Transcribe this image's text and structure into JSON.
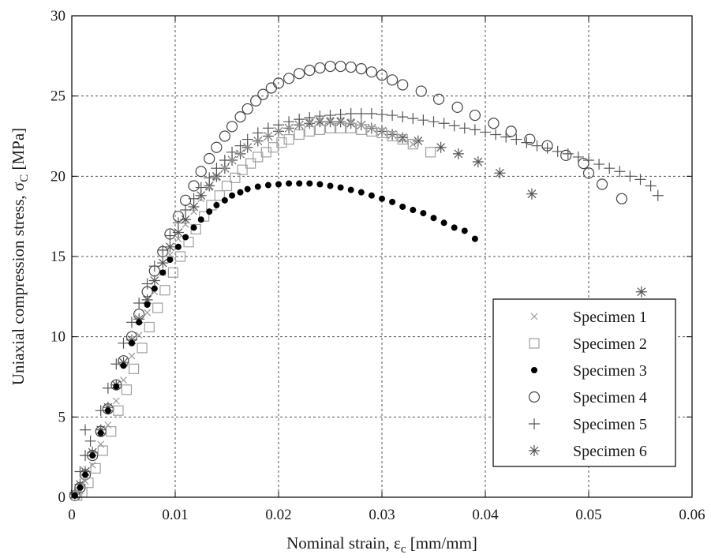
{
  "chart_data": {
    "type": "scatter",
    "title": "",
    "xlabel": "Nominal strain, ε",
    "xlabel_sub": "c",
    "xlabel_unit": " [mm/mm]",
    "ylabel": "Uniaxial compression stress,  σ",
    "ylabel_sub": "C",
    "ylabel_unit": " [MPa]",
    "xlim": [
      0,
      0.06
    ],
    "ylim": [
      0,
      30
    ],
    "x_ticks": [
      0,
      0.01,
      0.02,
      0.03,
      0.04,
      0.05,
      0.06
    ],
    "x_tick_labels": [
      "0",
      "0.01",
      "0.02",
      "0.03",
      "0.04",
      "0.05",
      "0.06"
    ],
    "y_ticks": [
      0,
      5,
      10,
      15,
      20,
      25,
      30
    ],
    "y_tick_labels": [
      "0",
      "5",
      "10",
      "15",
      "20",
      "25",
      "30"
    ],
    "grid": true,
    "legend_position": "bottom-right",
    "series": [
      {
        "name": "Specimen 1",
        "marker": "x",
        "color": "#9a9a9a",
        "points": [
          [
            0.0003,
            0.1
          ],
          [
            0.0008,
            0.4
          ],
          [
            0.0013,
            1.0
          ],
          [
            0.002,
            2.0
          ],
          [
            0.0028,
            3.3
          ],
          [
            0.0035,
            4.5
          ],
          [
            0.0043,
            6.0
          ],
          [
            0.005,
            7.3
          ],
          [
            0.0058,
            8.8
          ],
          [
            0.0065,
            10.1
          ],
          [
            0.0073,
            11.5
          ],
          [
            0.008,
            12.8
          ],
          [
            0.0088,
            14.0
          ],
          [
            0.0095,
            15.1
          ],
          [
            0.0103,
            16.1
          ],
          [
            0.011,
            17.0
          ],
          [
            0.0118,
            17.8
          ],
          [
            0.0125,
            18.6
          ],
          [
            0.0133,
            19.3
          ],
          [
            0.014,
            19.9
          ],
          [
            0.0148,
            20.5
          ],
          [
            0.0155,
            21.0
          ],
          [
            0.0163,
            21.4
          ],
          [
            0.017,
            21.8
          ],
          [
            0.018,
            22.2
          ],
          [
            0.019,
            22.5
          ],
          [
            0.02,
            22.8
          ],
          [
            0.021,
            23.0
          ],
          [
            0.022,
            23.2
          ],
          [
            0.023,
            23.4
          ],
          [
            0.024,
            23.5
          ],
          [
            0.025,
            23.5
          ],
          [
            0.026,
            23.5
          ],
          [
            0.027,
            23.4
          ],
          [
            0.028,
            23.2
          ],
          [
            0.029,
            23.0
          ],
          [
            0.03,
            22.8
          ],
          [
            0.031,
            22.6
          ],
          [
            0.032,
            22.3
          ],
          [
            0.033,
            22.0
          ]
        ]
      },
      {
        "name": "Specimen 2",
        "marker": "square",
        "color": "#a0a0a0",
        "points": [
          [
            0.0005,
            0.1
          ],
          [
            0.001,
            0.3
          ],
          [
            0.0016,
            0.9
          ],
          [
            0.0023,
            1.8
          ],
          [
            0.003,
            2.9
          ],
          [
            0.0038,
            4.1
          ],
          [
            0.0045,
            5.4
          ],
          [
            0.0053,
            6.7
          ],
          [
            0.006,
            8.0
          ],
          [
            0.0068,
            9.3
          ],
          [
            0.0075,
            10.6
          ],
          [
            0.0083,
            11.8
          ],
          [
            0.009,
            12.9
          ],
          [
            0.0098,
            14.0
          ],
          [
            0.0105,
            15.0
          ],
          [
            0.0113,
            15.9
          ],
          [
            0.012,
            16.7
          ],
          [
            0.0128,
            17.5
          ],
          [
            0.0135,
            18.2
          ],
          [
            0.0143,
            18.8
          ],
          [
            0.015,
            19.4
          ],
          [
            0.0158,
            19.9
          ],
          [
            0.0165,
            20.4
          ],
          [
            0.0173,
            20.8
          ],
          [
            0.018,
            21.2
          ],
          [
            0.0188,
            21.5
          ],
          [
            0.0195,
            21.8
          ],
          [
            0.0203,
            22.1
          ],
          [
            0.021,
            22.3
          ],
          [
            0.022,
            22.6
          ],
          [
            0.023,
            22.8
          ],
          [
            0.024,
            22.9
          ],
          [
            0.025,
            23.0
          ],
          [
            0.026,
            23.0
          ],
          [
            0.027,
            23.0
          ],
          [
            0.028,
            22.9
          ],
          [
            0.029,
            22.8
          ],
          [
            0.03,
            22.7
          ],
          [
            0.031,
            22.5
          ],
          [
            0.032,
            22.3
          ],
          [
            0.033,
            22.0
          ],
          [
            0.0347,
            21.5
          ]
        ]
      },
      {
        "name": "Specimen 3",
        "marker": "dot",
        "color": "#000000",
        "points": [
          [
            0.0003,
            0.1
          ],
          [
            0.0008,
            0.6
          ],
          [
            0.0013,
            1.4
          ],
          [
            0.002,
            2.6
          ],
          [
            0.0028,
            4.0
          ],
          [
            0.0035,
            5.4
          ],
          [
            0.0043,
            6.9
          ],
          [
            0.005,
            8.2
          ],
          [
            0.0058,
            9.6
          ],
          [
            0.0065,
            10.9
          ],
          [
            0.0073,
            12.0
          ],
          [
            0.008,
            13.0
          ],
          [
            0.0088,
            14.0
          ],
          [
            0.0095,
            14.8
          ],
          [
            0.0103,
            15.6
          ],
          [
            0.011,
            16.2
          ],
          [
            0.0118,
            16.8
          ],
          [
            0.0125,
            17.3
          ],
          [
            0.0133,
            17.8
          ],
          [
            0.014,
            18.2
          ],
          [
            0.0148,
            18.5
          ],
          [
            0.0155,
            18.8
          ],
          [
            0.0163,
            19.0
          ],
          [
            0.017,
            19.2
          ],
          [
            0.018,
            19.35
          ],
          [
            0.019,
            19.45
          ],
          [
            0.02,
            19.5
          ],
          [
            0.021,
            19.55
          ],
          [
            0.022,
            19.55
          ],
          [
            0.023,
            19.55
          ],
          [
            0.024,
            19.5
          ],
          [
            0.025,
            19.4
          ],
          [
            0.026,
            19.3
          ],
          [
            0.027,
            19.15
          ],
          [
            0.028,
            19.0
          ],
          [
            0.029,
            18.8
          ],
          [
            0.03,
            18.6
          ],
          [
            0.031,
            18.4
          ],
          [
            0.032,
            18.1
          ],
          [
            0.033,
            17.9
          ],
          [
            0.034,
            17.7
          ],
          [
            0.035,
            17.4
          ],
          [
            0.036,
            17.1
          ],
          [
            0.037,
            16.8
          ],
          [
            0.038,
            16.6
          ],
          [
            0.039,
            16.1
          ]
        ]
      },
      {
        "name": "Specimen 4",
        "marker": "circle",
        "color": "#444444",
        "points": [
          [
            0.0003,
            0.1
          ],
          [
            0.0008,
            0.6
          ],
          [
            0.0013,
            1.4
          ],
          [
            0.002,
            2.6
          ],
          [
            0.0028,
            4.1
          ],
          [
            0.0035,
            5.5
          ],
          [
            0.0043,
            7.0
          ],
          [
            0.005,
            8.5
          ],
          [
            0.0058,
            10.0
          ],
          [
            0.0065,
            11.4
          ],
          [
            0.0073,
            12.8
          ],
          [
            0.008,
            14.1
          ],
          [
            0.0088,
            15.3
          ],
          [
            0.0095,
            16.4
          ],
          [
            0.0103,
            17.5
          ],
          [
            0.011,
            18.5
          ],
          [
            0.0118,
            19.4
          ],
          [
            0.0125,
            20.3
          ],
          [
            0.0133,
            21.1
          ],
          [
            0.014,
            21.8
          ],
          [
            0.0148,
            22.5
          ],
          [
            0.0155,
            23.1
          ],
          [
            0.0163,
            23.7
          ],
          [
            0.017,
            24.2
          ],
          [
            0.0178,
            24.7
          ],
          [
            0.0185,
            25.1
          ],
          [
            0.0193,
            25.5
          ],
          [
            0.02,
            25.8
          ],
          [
            0.021,
            26.1
          ],
          [
            0.022,
            26.4
          ],
          [
            0.023,
            26.6
          ],
          [
            0.024,
            26.75
          ],
          [
            0.025,
            26.85
          ],
          [
            0.026,
            26.85
          ],
          [
            0.027,
            26.8
          ],
          [
            0.028,
            26.7
          ],
          [
            0.029,
            26.5
          ],
          [
            0.03,
            26.3
          ],
          [
            0.031,
            26.0
          ],
          [
            0.032,
            25.7
          ],
          [
            0.0338,
            25.3
          ],
          [
            0.0355,
            24.8
          ],
          [
            0.0373,
            24.3
          ],
          [
            0.039,
            23.8
          ],
          [
            0.0408,
            23.3
          ],
          [
            0.0425,
            22.8
          ],
          [
            0.0443,
            22.3
          ],
          [
            0.046,
            21.9
          ],
          [
            0.0478,
            21.3
          ],
          [
            0.0495,
            20.8
          ],
          [
            0.05,
            20.2
          ],
          [
            0.0513,
            19.5
          ],
          [
            0.0532,
            18.6
          ]
        ]
      },
      {
        "name": "Specimen 5",
        "marker": "plus",
        "color": "#555555",
        "points": [
          [
            0.0003,
            0.3
          ],
          [
            0.0008,
            1.6
          ],
          [
            0.0013,
            2.6
          ],
          [
            0.0018,
            3.5
          ],
          [
            0.0013,
            4.2
          ],
          [
            0.0028,
            5.4
          ],
          [
            0.0035,
            6.8
          ],
          [
            0.0043,
            8.3
          ],
          [
            0.005,
            9.6
          ],
          [
            0.0058,
            10.9
          ],
          [
            0.0065,
            12.1
          ],
          [
            0.0073,
            13.3
          ],
          [
            0.008,
            14.4
          ],
          [
            0.0088,
            15.4
          ],
          [
            0.0095,
            16.3
          ],
          [
            0.0103,
            17.1
          ],
          [
            0.011,
            17.9
          ],
          [
            0.0118,
            18.6
          ],
          [
            0.0125,
            19.3
          ],
          [
            0.0133,
            19.9
          ],
          [
            0.014,
            20.5
          ],
          [
            0.0148,
            21.0
          ],
          [
            0.0155,
            21.5
          ],
          [
            0.0163,
            21.9
          ],
          [
            0.017,
            22.3
          ],
          [
            0.018,
            22.7
          ],
          [
            0.019,
            23.0
          ],
          [
            0.02,
            23.2
          ],
          [
            0.021,
            23.4
          ],
          [
            0.022,
            23.55
          ],
          [
            0.023,
            23.65
          ],
          [
            0.024,
            23.75
          ],
          [
            0.025,
            23.8
          ],
          [
            0.026,
            23.85
          ],
          [
            0.027,
            23.9
          ],
          [
            0.028,
            23.9
          ],
          [
            0.029,
            23.9
          ],
          [
            0.03,
            23.85
          ],
          [
            0.031,
            23.8
          ],
          [
            0.032,
            23.7
          ],
          [
            0.033,
            23.6
          ],
          [
            0.034,
            23.5
          ],
          [
            0.035,
            23.4
          ],
          [
            0.036,
            23.3
          ],
          [
            0.037,
            23.15
          ],
          [
            0.038,
            23.0
          ],
          [
            0.039,
            22.9
          ],
          [
            0.04,
            22.75
          ],
          [
            0.041,
            22.6
          ],
          [
            0.042,
            22.45
          ],
          [
            0.043,
            22.3
          ],
          [
            0.044,
            22.1
          ],
          [
            0.045,
            21.9
          ],
          [
            0.046,
            21.75
          ],
          [
            0.047,
            21.55
          ],
          [
            0.048,
            21.4
          ],
          [
            0.049,
            21.2
          ],
          [
            0.05,
            21.0
          ],
          [
            0.051,
            20.75
          ],
          [
            0.052,
            20.5
          ],
          [
            0.053,
            20.3
          ],
          [
            0.054,
            20.0
          ],
          [
            0.055,
            19.8
          ],
          [
            0.056,
            19.4
          ],
          [
            0.0567,
            18.8
          ]
        ]
      },
      {
        "name": "Specimen 6",
        "marker": "asterisk",
        "color": "#555555",
        "points": [
          [
            0.0003,
            0.2
          ],
          [
            0.0008,
            0.8
          ],
          [
            0.0013,
            1.6
          ],
          [
            0.002,
            2.8
          ],
          [
            0.0028,
            4.2
          ],
          [
            0.0035,
            5.6
          ],
          [
            0.0043,
            7.0
          ],
          [
            0.005,
            8.4
          ],
          [
            0.0058,
            9.8
          ],
          [
            0.0065,
            11.1
          ],
          [
            0.0073,
            12.3
          ],
          [
            0.008,
            13.5
          ],
          [
            0.0088,
            14.6
          ],
          [
            0.0095,
            15.6
          ],
          [
            0.0103,
            16.5
          ],
          [
            0.011,
            17.3
          ],
          [
            0.0118,
            18.1
          ],
          [
            0.0125,
            18.8
          ],
          [
            0.0133,
            19.4
          ],
          [
            0.014,
            20.0
          ],
          [
            0.0148,
            20.5
          ],
          [
            0.0155,
            21.0
          ],
          [
            0.0163,
            21.4
          ],
          [
            0.017,
            21.8
          ],
          [
            0.018,
            22.2
          ],
          [
            0.019,
            22.5
          ],
          [
            0.02,
            22.8
          ],
          [
            0.021,
            23.0
          ],
          [
            0.022,
            23.2
          ],
          [
            0.023,
            23.3
          ],
          [
            0.024,
            23.4
          ],
          [
            0.025,
            23.4
          ],
          [
            0.026,
            23.4
          ],
          [
            0.027,
            23.3
          ],
          [
            0.028,
            23.2
          ],
          [
            0.029,
            23.0
          ],
          [
            0.03,
            22.8
          ],
          [
            0.031,
            22.6
          ],
          [
            0.032,
            22.4
          ],
          [
            0.0335,
            22.2
          ],
          [
            0.0357,
            21.8
          ],
          [
            0.0374,
            21.4
          ],
          [
            0.0393,
            20.9
          ],
          [
            0.0414,
            20.2
          ],
          [
            0.0445,
            18.9
          ],
          [
            0.0551,
            12.8
          ]
        ]
      }
    ]
  }
}
